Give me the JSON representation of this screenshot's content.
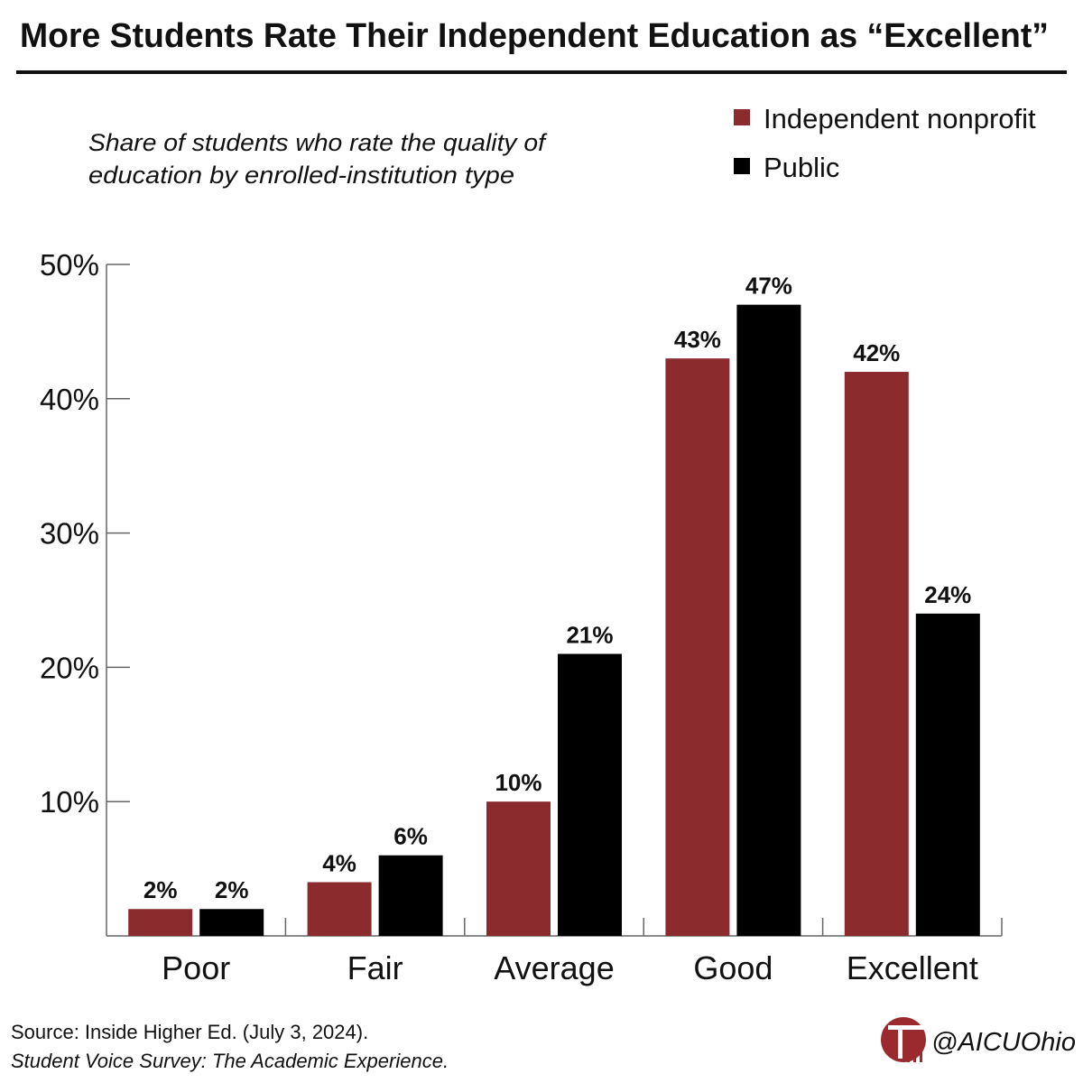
{
  "chart_data": {
    "type": "bar",
    "title": "More Students Rate Their Independent Education as “Excellent”",
    "subtitle": [
      "Share of students who rate the quality of",
      "education by enrolled-institution type"
    ],
    "categories": [
      "Poor",
      "Fair",
      "Average",
      "Good",
      "Excellent"
    ],
    "series": [
      {
        "name": "Independent nonprofit",
        "color": "#8b2b2e",
        "values": [
          2,
          4,
          10,
          43,
          42
        ]
      },
      {
        "name": "Public",
        "color": "#000000",
        "values": [
          2,
          6,
          21,
          47,
          24
        ]
      }
    ],
    "ylim": [
      0,
      50
    ],
    "yticks": [
      10,
      20,
      30,
      40,
      50
    ],
    "ytick_labels": [
      "10%",
      "20%",
      "30%",
      "40%",
      "50%"
    ],
    "value_suffix": "%",
    "legend_position": "top-right",
    "grid": false
  },
  "footer": {
    "source_line1": "Source: Inside Higher Ed. (July 3, 2024).",
    "source_line2": "Student Voice Survey: The Academic Experience.",
    "handle": "@AICUOhio",
    "logo_color": "#9b2a2e"
  }
}
